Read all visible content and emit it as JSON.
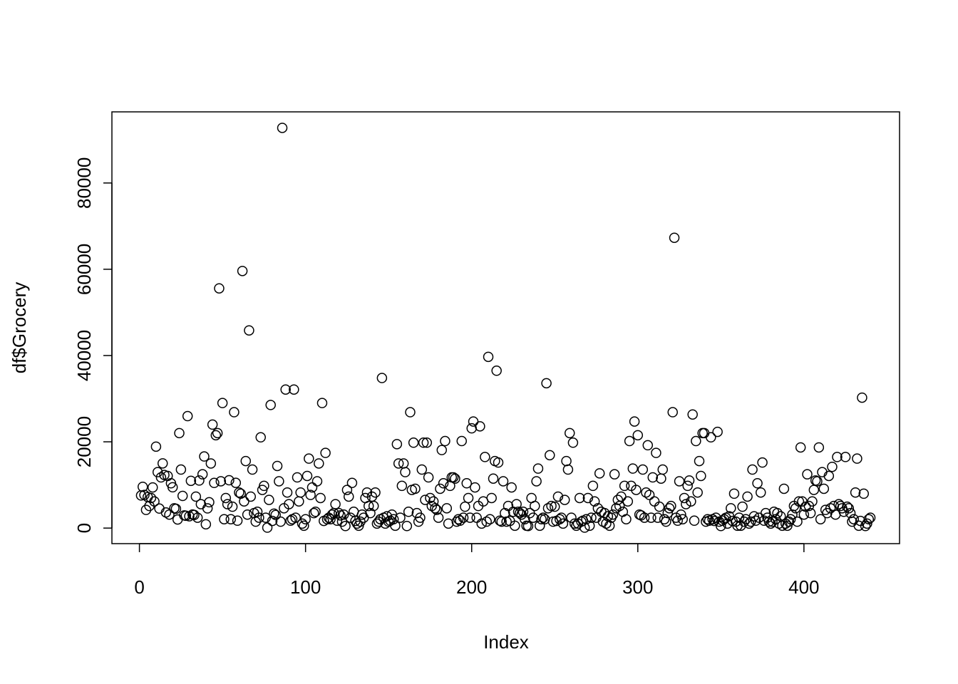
{
  "chart_data": {
    "type": "scatter",
    "x_label": "Index",
    "y_label": "df$Grocery",
    "color": "#000000",
    "values": [
      7561,
      9568,
      7684,
      4221,
      7198,
      5126,
      6975,
      9426,
      6192,
      18881,
      12974,
      4523,
      11757,
      15000,
      12319,
      3624,
      12091,
      3133,
      10391,
      9465,
      4602,
      4469,
      1996,
      22019,
      13567,
      7460,
      2947,
      2861,
      25957,
      2740,
      10955,
      3157,
      3045,
      7305,
      2405,
      11034,
      5550,
      12469,
      16599,
      880,
      4563,
      5989,
      14982,
      23998,
      10471,
      21531,
      22019,
      55571,
      10858,
      28986,
      2062,
      6970,
      5550,
      11091,
      2062,
      4955,
      26866,
      10487,
      1717,
      8253,
      7978,
      59598,
      6192,
      15541,
      3133,
      45828,
      7305,
      13567,
      3470,
      1493,
      3779,
      2405,
      21042,
      8852,
      9794,
      2405,
      103,
      6536,
      28540,
      1664,
      3347,
      3045,
      14403,
      10858,
      1493,
      92780,
      4602,
      32114,
      8253,
      5550,
      1717,
      2062,
      32114,
      2405,
      11757,
      6192,
      8253,
      1042,
      552,
      2062,
      12091,
      16106,
      7684,
      9426,
      3470,
      3779,
      10858,
      14982,
      6970,
      28986,
      1664,
      17431,
      2062,
      2405,
      2062,
      3133,
      3470,
      5550,
      1717,
      3470,
      2947,
      1493,
      3133,
      480,
      8852,
      7305,
      2405,
      10471,
      3779,
      1664,
      1042,
      552,
      1493,
      3133,
      2405,
      6970,
      8253,
      5126,
      3470,
      7305,
      5126,
      8253,
      1042,
      1493,
      2062,
      34792,
      2405,
      1042,
      2740,
      1493,
      1717,
      3133,
      2062,
      552,
      19460,
      14982,
      2405,
      9794,
      14982,
      12974,
      480,
      3779,
      26866,
      8853,
      19805,
      9117,
      3470,
      1493,
      2405,
      13567,
      19805,
      6536,
      19805,
      11757,
      6970,
      5126,
      6192,
      4602,
      4221,
      2405,
      9117,
      18088,
      10391,
      20170,
      4602,
      1042,
      9794,
      11757,
      11757,
      11470,
      1493,
      2062,
      1717,
      20170,
      2405,
      4955,
      10391,
      6970,
      2405,
      23127,
      24708,
      9426,
      2405,
      5126,
      23596,
      1042,
      6192,
      16483,
      1493,
      39694,
      2062,
      6970,
      11470,
      15541,
      36486,
      15200,
      1717,
      1493,
      10858,
      3470,
      1493,
      5126,
      1664,
      9426,
      3779,
      552,
      5550,
      3779,
      3470,
      3133,
      3779,
      2062,
      552,
      480,
      3470,
      6970,
      2405,
      5126,
      10858,
      13800,
      552,
      2062,
      2405,
      2062,
      33586,
      4602,
      16900,
      5126,
      1493,
      4955,
      1664,
      7305,
      2062,
      2405,
      1042,
      6536,
      15541,
      13567,
      22019,
      2405,
      19805,
      1042,
      552,
      1042,
      6970,
      1493,
      1717,
      103,
      2062,
      6970,
      552,
      2405,
      9794,
      6192,
      2405,
      4602,
      12690,
      3779,
      1493,
      3470,
      1042,
      2740,
      552,
      2405,
      3133,
      12469,
      4602,
      6536,
      5126,
      7305,
      3779,
      9794,
      2062,
      6192,
      20170,
      9794,
      13800,
      24708,
      8853,
      21531,
      3133,
      2947,
      13567,
      2405,
      8253,
      19200,
      7684,
      2405,
      11757,
      6192,
      17431,
      2405,
      4955,
      11470,
      13567,
      2062,
      1493,
      3470,
      4602,
      5126,
      26866,
      67298,
      2405,
      1717,
      10858,
      3133,
      2062,
      6970,
      5550,
      9794,
      11034,
      6192,
      26340,
      1717,
      20170,
      8253,
      15541,
      12091,
      22019,
      22019,
      1493,
      2062,
      1717,
      21042,
      2062,
      1664,
      2405,
      22314,
      1493,
      480,
      1717,
      2062,
      2405,
      1042,
      2740,
      4602,
      1664,
      7978,
      1493,
      552,
      2405,
      552,
      4955,
      1493,
      2062,
      7305,
      1042,
      1493,
      13567,
      2740,
      1717,
      10391,
      2405,
      8253,
      15200,
      1717,
      3470,
      2405,
      1493,
      1042,
      1493,
      3779,
      2062,
      3470,
      1042,
      2740,
      552,
      9117,
      1042,
      552,
      1493,
      2062,
      3133,
      5126,
      4602,
      1493,
      6192,
      18700,
      6192,
      3133,
      4955,
      12469,
      5126,
      3470,
      6192,
      8853,
      11034,
      10858,
      18700,
      2062,
      12974,
      9117,
      4221,
      3470,
      12091,
      4602,
      14200,
      5126,
      3133,
      16483,
      5550,
      5126,
      4602,
      3779,
      16483,
      4955,
      4602,
      3470,
      1493,
      2062,
      8253,
      16107,
      552,
      1664,
      30243,
      7978,
      480,
      1042,
      2062,
      2405
    ],
    "xlim": [
      -16.56,
      457.56
    ],
    "ylim": [
      -3604,
      96487
    ],
    "xticks": [
      0,
      100,
      200,
      300,
      400
    ],
    "yticks": [
      0,
      20000,
      40000,
      60000,
      80000
    ]
  }
}
